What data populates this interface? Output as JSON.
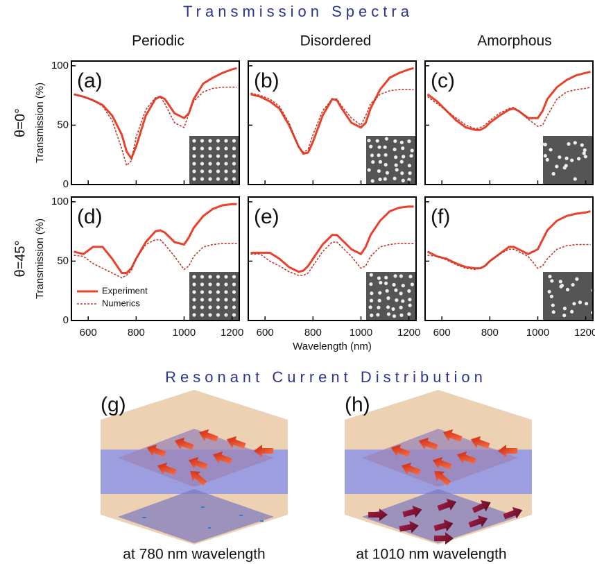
{
  "title": "Transmission Spectra",
  "columns": [
    "Periodic",
    "Disordered",
    "Amorphous"
  ],
  "rows": [
    "θ=0°",
    "θ=45°"
  ],
  "illustration": {
    "title": "Resonant Current Distribution",
    "panels": [
      {
        "label": "(g)",
        "caption": "at 780 nm wavelength"
      },
      {
        "label": "(h)",
        "caption": "at 1010 nm wavelength"
      }
    ]
  },
  "chart_data": [
    {
      "type": "line",
      "label": "(a)",
      "ylabel": "Transmission (%)",
      "x": [
        540,
        580,
        620,
        660,
        700,
        740,
        760,
        780,
        800,
        840,
        880,
        900,
        920,
        960,
        1000,
        1020,
        1040,
        1080,
        1120,
        1160,
        1200,
        1220
      ],
      "series": [
        {
          "color": "#e8412c",
          "dash": false,
          "values": [
            76,
            74,
            71,
            67,
            58,
            42,
            28,
            22,
            32,
            58,
            72,
            74,
            72,
            60,
            56,
            60,
            72,
            85,
            90,
            94,
            97,
            98
          ]
        },
        {
          "color": "#c0392b",
          "dash": true,
          "values": [
            76,
            74,
            71,
            66,
            54,
            30,
            16,
            20,
            40,
            63,
            73,
            74,
            68,
            52,
            48,
            60,
            70,
            78,
            81,
            82,
            82,
            82
          ]
        }
      ],
      "xlim": [
        530,
        1230
      ],
      "ylim": [
        0,
        104
      ],
      "xticks": [
        600,
        800,
        1000,
        1200
      ],
      "yticks": [
        0,
        50,
        100
      ]
    },
    {
      "type": "line",
      "label": "(b)",
      "x": [
        540,
        580,
        620,
        660,
        700,
        740,
        760,
        780,
        800,
        840,
        880,
        900,
        920,
        960,
        1000,
        1020,
        1040,
        1080,
        1120,
        1160,
        1200,
        1220
      ],
      "series": [
        {
          "color": "#e8412c",
          "dash": false,
          "values": [
            76,
            74,
            70,
            64,
            50,
            32,
            26,
            27,
            36,
            58,
            72,
            71,
            64,
            52,
            48,
            52,
            64,
            80,
            90,
            94,
            97,
            98
          ]
        },
        {
          "color": "#c0392b",
          "dash": true,
          "values": [
            77,
            75,
            72,
            66,
            52,
            32,
            27,
            30,
            42,
            62,
            72,
            72,
            66,
            56,
            50,
            58,
            68,
            76,
            79,
            80,
            80,
            80
          ]
        }
      ],
      "xlim": [
        530,
        1230
      ],
      "ylim": [
        0,
        104
      ],
      "xticks": [
        600,
        800,
        1000,
        1200
      ],
      "yticks": [
        0,
        50,
        100
      ]
    },
    {
      "type": "line",
      "label": "(c)",
      "x": [
        540,
        580,
        620,
        660,
        700,
        740,
        760,
        780,
        800,
        840,
        880,
        900,
        920,
        960,
        1000,
        1020,
        1040,
        1080,
        1120,
        1160,
        1200,
        1220
      ],
      "series": [
        {
          "color": "#e8412c",
          "dash": false,
          "values": [
            76,
            70,
            62,
            54,
            48,
            46,
            46,
            48,
            52,
            58,
            63,
            64,
            62,
            56,
            56,
            62,
            72,
            82,
            88,
            92,
            94,
            95
          ]
        },
        {
          "color": "#c0392b",
          "dash": true,
          "values": [
            74,
            68,
            62,
            56,
            50,
            47,
            48,
            50,
            54,
            60,
            64,
            65,
            62,
            55,
            49,
            50,
            58,
            72,
            78,
            80,
            81,
            82
          ]
        }
      ],
      "xlim": [
        530,
        1230
      ],
      "ylim": [
        0,
        104
      ],
      "xticks": [
        600,
        800,
        1000,
        1200
      ],
      "yticks": [
        0,
        50,
        100
      ]
    },
    {
      "type": "line",
      "label": "(d)",
      "ylabel": "Transmission (%)",
      "legend": "lower left",
      "x": [
        540,
        580,
        620,
        660,
        700,
        740,
        760,
        780,
        800,
        840,
        880,
        900,
        920,
        960,
        1000,
        1020,
        1040,
        1080,
        1120,
        1160,
        1200,
        1220
      ],
      "series": [
        {
          "name": "Experiment",
          "color": "#e8412c",
          "dash": false,
          "values": [
            58,
            56,
            62,
            62,
            52,
            40,
            40,
            44,
            52,
            66,
            75,
            76,
            74,
            66,
            64,
            70,
            78,
            88,
            94,
            97,
            98,
            98
          ]
        },
        {
          "name": "Numerics",
          "color": "#c0392b",
          "dash": true,
          "values": [
            55,
            54,
            48,
            44,
            40,
            36,
            38,
            42,
            52,
            64,
            68,
            68,
            64,
            54,
            43,
            46,
            54,
            62,
            64,
            65,
            65,
            65
          ]
        }
      ],
      "xlim": [
        530,
        1230
      ],
      "ylim": [
        0,
        104
      ],
      "xticks": [
        600,
        800,
        1000,
        1200
      ],
      "yticks": [
        0,
        50,
        100
      ]
    },
    {
      "type": "line",
      "label": "(e)",
      "xlabel": "Wavelength (nm)",
      "x": [
        540,
        580,
        620,
        660,
        700,
        740,
        760,
        780,
        800,
        840,
        880,
        900,
        920,
        960,
        1000,
        1020,
        1040,
        1080,
        1120,
        1160,
        1200,
        1220
      ],
      "series": [
        {
          "color": "#e8412c",
          "dash": false,
          "values": [
            57,
            57,
            57,
            52,
            45,
            41,
            42,
            46,
            52,
            64,
            72,
            72,
            68,
            60,
            56,
            62,
            72,
            84,
            92,
            95,
            96,
            96
          ]
        },
        {
          "color": "#c0392b",
          "dash": true,
          "values": [
            56,
            56,
            50,
            46,
            41,
            38,
            38,
            40,
            46,
            58,
            66,
            66,
            62,
            54,
            44,
            46,
            54,
            62,
            64,
            65,
            65,
            65
          ]
        }
      ],
      "xlim": [
        530,
        1230
      ],
      "ylim": [
        0,
        104
      ],
      "xticks": [
        600,
        800,
        1000,
        1200
      ],
      "yticks": [
        0,
        50,
        100
      ]
    },
    {
      "type": "line",
      "label": "(f)",
      "x": [
        540,
        580,
        620,
        660,
        700,
        740,
        760,
        780,
        800,
        840,
        880,
        900,
        920,
        960,
        1000,
        1020,
        1040,
        1080,
        1120,
        1160,
        1200,
        1220
      ],
      "series": [
        {
          "color": "#e8412c",
          "dash": false,
          "values": [
            58,
            54,
            52,
            48,
            45,
            44,
            44,
            46,
            50,
            56,
            62,
            62,
            60,
            56,
            60,
            68,
            76,
            84,
            88,
            90,
            91,
            92
          ]
        },
        {
          "color": "#c0392b",
          "dash": true,
          "values": [
            55,
            54,
            51,
            47,
            44,
            43,
            44,
            46,
            50,
            56,
            60,
            60,
            58,
            54,
            44,
            46,
            52,
            60,
            63,
            64,
            64,
            64
          ]
        }
      ],
      "xlim": [
        530,
        1230
      ],
      "ylim": [
        0,
        104
      ],
      "xticks": [
        600,
        800,
        1000,
        1200
      ],
      "yticks": [
        0,
        50,
        100
      ]
    }
  ]
}
